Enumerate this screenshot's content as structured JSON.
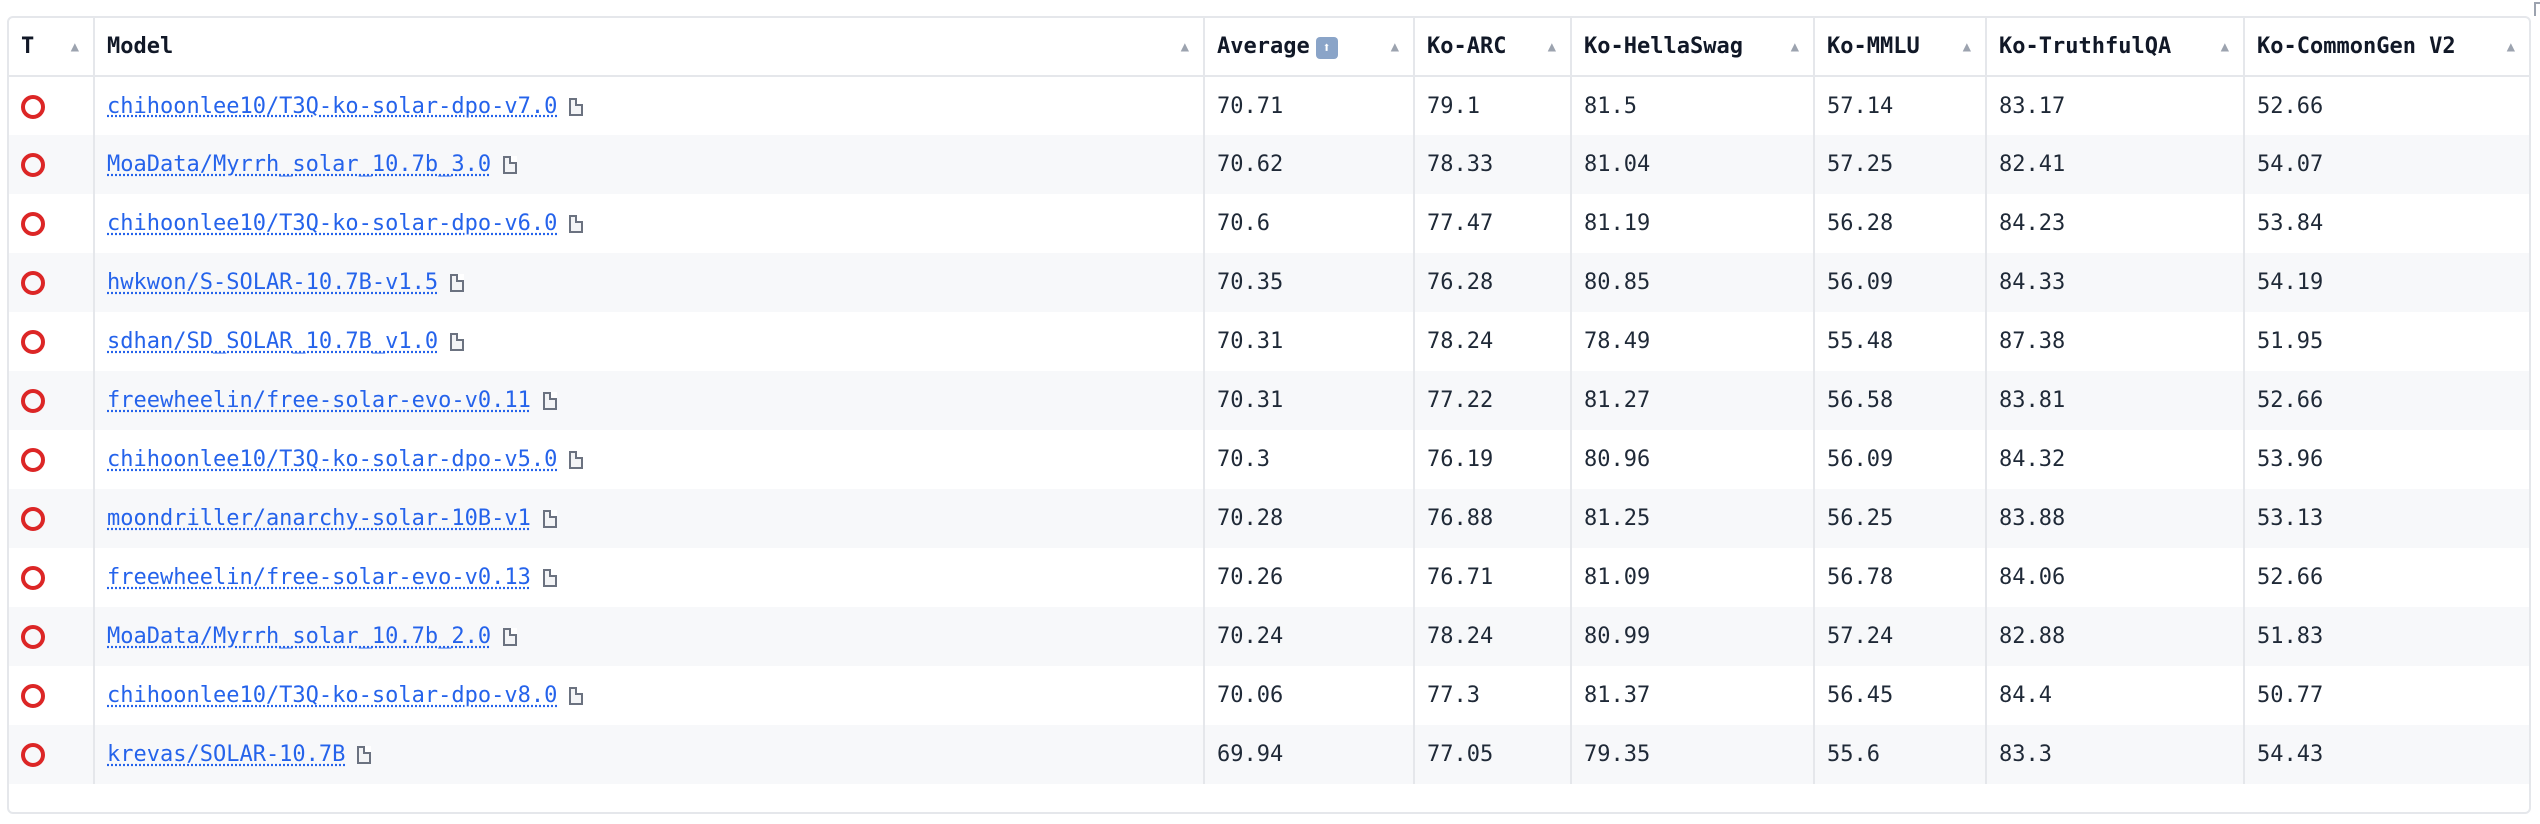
{
  "columns": [
    {
      "label": "T",
      "sort_icon": "▲"
    },
    {
      "label": "Model",
      "sort_icon": "▲"
    },
    {
      "label": "Average",
      "sort_icon": "▲",
      "emoji": "⬆"
    },
    {
      "label": "Ko-ARC",
      "sort_icon": "▲"
    },
    {
      "label": "Ko-HellaSwag",
      "sort_icon": "▲"
    },
    {
      "label": "Ko-MMLU",
      "sort_icon": "▲"
    },
    {
      "label": "Ko-TruthfulQA",
      "sort_icon": "▲"
    },
    {
      "label": "Ko-CommonGen V2",
      "sort_icon": "▲"
    }
  ],
  "rows": [
    {
      "model": "chihoonlee10/T3Q-ko-solar-dpo-v7.0",
      "average": "70.71",
      "ko_arc": "79.1",
      "ko_hellaswag": "81.5",
      "ko_mmlu": "57.14",
      "ko_truthfulqa": "83.17",
      "ko_commongen": "52.66"
    },
    {
      "model": "MoaData/Myrrh_solar_10.7b_3.0",
      "average": "70.62",
      "ko_arc": "78.33",
      "ko_hellaswag": "81.04",
      "ko_mmlu": "57.25",
      "ko_truthfulqa": "82.41",
      "ko_commongen": "54.07"
    },
    {
      "model": "chihoonlee10/T3Q-ko-solar-dpo-v6.0",
      "average": "70.6",
      "ko_arc": "77.47",
      "ko_hellaswag": "81.19",
      "ko_mmlu": "56.28",
      "ko_truthfulqa": "84.23",
      "ko_commongen": "53.84"
    },
    {
      "model": "hwkwon/S-SOLAR-10.7B-v1.5",
      "average": "70.35",
      "ko_arc": "76.28",
      "ko_hellaswag": "80.85",
      "ko_mmlu": "56.09",
      "ko_truthfulqa": "84.33",
      "ko_commongen": "54.19"
    },
    {
      "model": "sdhan/SD_SOLAR_10.7B_v1.0",
      "average": "70.31",
      "ko_arc": "78.24",
      "ko_hellaswag": "78.49",
      "ko_mmlu": "55.48",
      "ko_truthfulqa": "87.38",
      "ko_commongen": "51.95"
    },
    {
      "model": "freewheelin/free-solar-evo-v0.11",
      "average": "70.31",
      "ko_arc": "77.22",
      "ko_hellaswag": "81.27",
      "ko_mmlu": "56.58",
      "ko_truthfulqa": "83.81",
      "ko_commongen": "52.66"
    },
    {
      "model": "chihoonlee10/T3Q-ko-solar-dpo-v5.0",
      "average": "70.3",
      "ko_arc": "76.19",
      "ko_hellaswag": "80.96",
      "ko_mmlu": "56.09",
      "ko_truthfulqa": "84.32",
      "ko_commongen": "53.96"
    },
    {
      "model": "moondriller/anarchy-solar-10B-v1",
      "average": "70.28",
      "ko_arc": "76.88",
      "ko_hellaswag": "81.25",
      "ko_mmlu": "56.25",
      "ko_truthfulqa": "83.88",
      "ko_commongen": "53.13"
    },
    {
      "model": "freewheelin/free-solar-evo-v0.13",
      "average": "70.26",
      "ko_arc": "76.71",
      "ko_hellaswag": "81.09",
      "ko_mmlu": "56.78",
      "ko_truthfulqa": "84.06",
      "ko_commongen": "52.66"
    },
    {
      "model": "MoaData/Myrrh_solar_10.7b_2.0",
      "average": "70.24",
      "ko_arc": "78.24",
      "ko_hellaswag": "80.99",
      "ko_mmlu": "57.24",
      "ko_truthfulqa": "82.88",
      "ko_commongen": "51.83"
    },
    {
      "model": "chihoonlee10/T3Q-ko-solar-dpo-v8.0",
      "average": "70.06",
      "ko_arc": "77.3",
      "ko_hellaswag": "81.37",
      "ko_mmlu": "56.45",
      "ko_truthfulqa": "84.4",
      "ko_commongen": "50.77"
    },
    {
      "model": "krevas/SOLAR-10.7B",
      "average": "69.94",
      "ko_arc": "77.05",
      "ko_hellaswag": "79.35",
      "ko_mmlu": "55.6",
      "ko_truthfulqa": "83.3",
      "ko_commongen": "54.43"
    }
  ],
  "icons": {
    "type_marker": "circle-red-icon",
    "model_card": "document-icon",
    "sort": "sort-arrow-icon"
  },
  "colors": {
    "type_marker": "#dc2626",
    "link": "#2563eb"
  }
}
